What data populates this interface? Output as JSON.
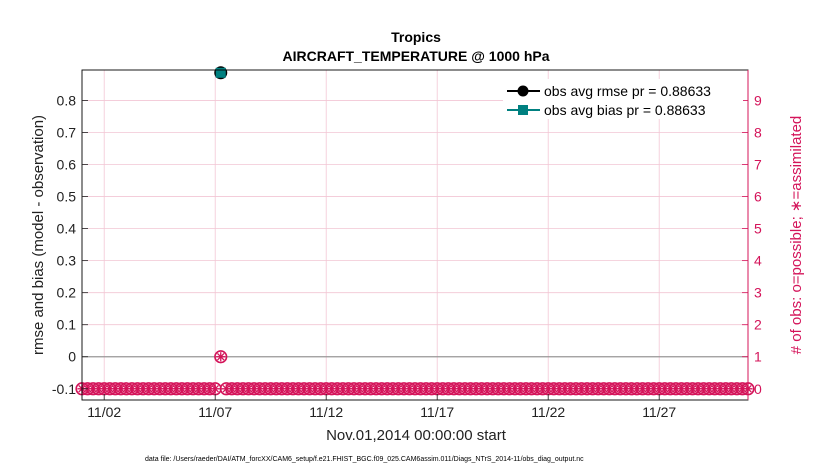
{
  "chart_data": {
    "type": "line",
    "title": "Tropics",
    "subtitle": "AIRCRAFT_TEMPERATURE @ 1000 hPa",
    "xlabel": "Nov.01,2014 00:00:00 start",
    "ylabel": "rmse and bias (model - observation)",
    "y2label": "# of obs: o=possible; ∗=assimilated",
    "x_ticks": [
      "11/02",
      "11/07",
      "11/12",
      "11/17",
      "11/22",
      "11/27"
    ],
    "x_tick_days": [
      2,
      7,
      12,
      17,
      22,
      27
    ],
    "xlim_days": [
      1,
      31
    ],
    "y_ticks": [
      "-0.1",
      "0",
      "0.1",
      "0.2",
      "0.3",
      "0.4",
      "0.5",
      "0.6",
      "0.7",
      "0.8"
    ],
    "ylim": [
      -0.135,
      0.895
    ],
    "y2_ticks": [
      "0",
      "1",
      "2",
      "3",
      "4",
      "5",
      "6",
      "7",
      "8",
      "9"
    ],
    "y2lim": [
      -0.35,
      9.95
    ],
    "grid": true,
    "legend_position": "top-right",
    "series": [
      {
        "name": "obs avg rmse pr = 0.88633",
        "axis": "left",
        "color": "#000000",
        "marker": "circle",
        "points": [
          {
            "day": 7.25,
            "value": 0.88633
          }
        ]
      },
      {
        "name": "obs avg bias pr = 0.88633",
        "axis": "left",
        "color": "#008080",
        "marker": "square",
        "points": [
          {
            "day": 7.25,
            "value": 0.88633
          }
        ]
      },
      {
        "name": "obs possible",
        "axis": "right",
        "color": "#d4145a",
        "marker": "circle",
        "days_start": 1.0,
        "days_step": 0.25,
        "count": 121,
        "values_default": 0,
        "nonzero": [
          {
            "day": 7.25,
            "value": 1
          }
        ]
      },
      {
        "name": "obs assimilated",
        "axis": "right",
        "color": "#d4145a",
        "marker": "star",
        "days_start": 1.0,
        "days_step": 0.25,
        "count": 121,
        "values_default": 0,
        "nonzero": [
          {
            "day": 7.25,
            "value": 1
          }
        ]
      }
    ],
    "zero_line": 0,
    "colors": {
      "left_axis": "#222222",
      "right_axis": "#d4145a",
      "grid": "#f2c6d4"
    }
  },
  "footer": "data file: /Users/raeder/DAI/ATM_forcXX/CAM6_setup/f.e21.FHIST_BGC.f09_025.CAM6assim.011/Diags_NTrS_2014-11/obs_diag_output.nc"
}
